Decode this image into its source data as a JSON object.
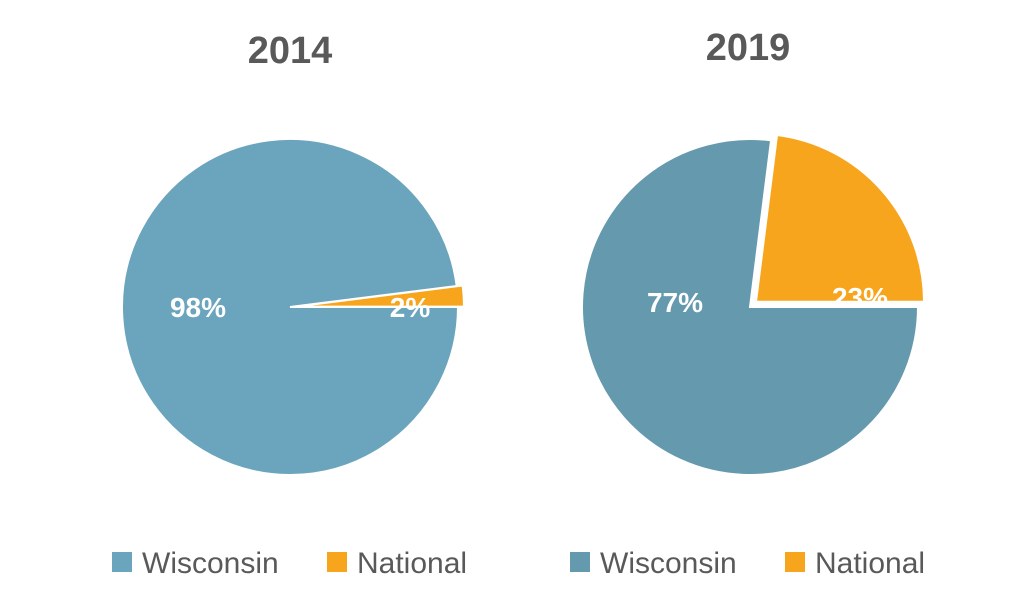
{
  "chart_data": [
    {
      "type": "pie",
      "title": "2014",
      "slices": [
        {
          "name": "Wisconsin",
          "value": 98,
          "label": "98%",
          "color": "#6aa5bd"
        },
        {
          "name": "National",
          "value": 2,
          "label": "2%",
          "color": "#f7a51c"
        }
      ],
      "legend": [
        "Wisconsin",
        "National"
      ],
      "legend_position": "bottom"
    },
    {
      "type": "pie",
      "title": "2019",
      "slices": [
        {
          "name": "Wisconsin",
          "value": 77,
          "label": "77%",
          "color": "#6499ae"
        },
        {
          "name": "National",
          "value": 23,
          "label": "23%",
          "color": "#f7a51c"
        }
      ],
      "legend": [
        "Wisconsin",
        "National"
      ],
      "legend_position": "bottom"
    }
  ]
}
